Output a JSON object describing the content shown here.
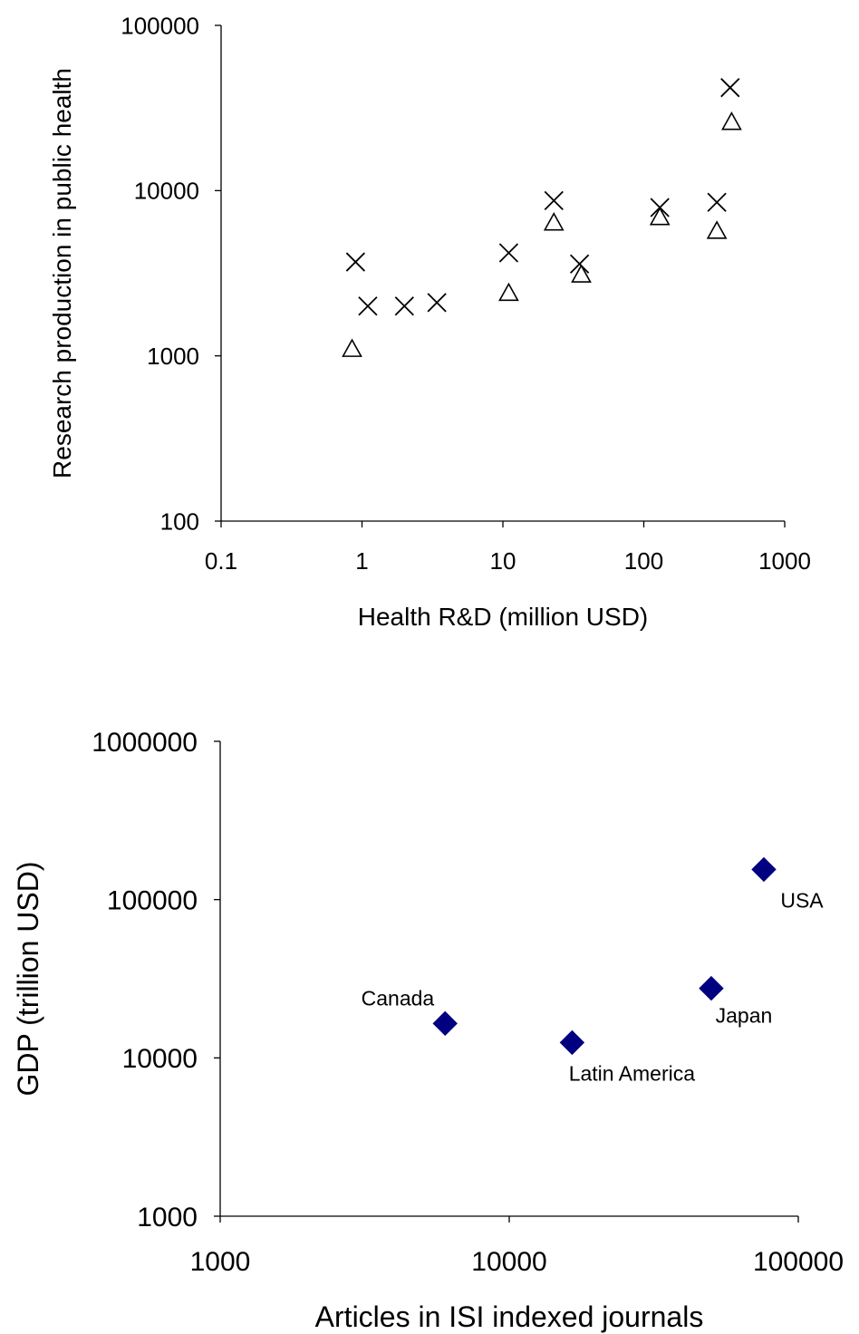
{
  "chart_data": [
    {
      "type": "scatter",
      "title": "",
      "xlabel": "Health R&D (million USD)",
      "ylabel": "Research production in public health",
      "x_scale": "log",
      "y_scale": "log",
      "xlim": [
        0.1,
        1000
      ],
      "ylim": [
        100,
        100000
      ],
      "x_ticks": [
        "0.1",
        "1",
        "10",
        "100",
        "1000"
      ],
      "y_ticks": [
        "100",
        "1000",
        "10000",
        "100000"
      ],
      "grid": false,
      "legend": "none",
      "series": [
        {
          "marker": "x",
          "color": "#000000",
          "points": [
            {
              "x": 0.9,
              "y": 3700
            },
            {
              "x": 1.1,
              "y": 2000
            },
            {
              "x": 2.0,
              "y": 2000
            },
            {
              "x": 3.4,
              "y": 2100
            },
            {
              "x": 11,
              "y": 4200
            },
            {
              "x": 23,
              "y": 8700
            },
            {
              "x": 35,
              "y": 3600
            },
            {
              "x": 130,
              "y": 7900
            },
            {
              "x": 330,
              "y": 8500
            },
            {
              "x": 410,
              "y": 42000
            }
          ]
        },
        {
          "marker": "triangle",
          "color": "#000000",
          "points": [
            {
              "x": 0.85,
              "y": 1100
            },
            {
              "x": 11,
              "y": 2400
            },
            {
              "x": 23,
              "y": 6400
            },
            {
              "x": 36,
              "y": 3100
            },
            {
              "x": 130,
              "y": 6900
            },
            {
              "x": 330,
              "y": 5700
            },
            {
              "x": 420,
              "y": 26000
            }
          ]
        }
      ]
    },
    {
      "type": "scatter",
      "title": "",
      "xlabel": "Articles in ISI indexed journals",
      "ylabel": "GDP (trillion USD)",
      "x_scale": "log",
      "y_scale": "log",
      "xlim": [
        1000,
        100000
      ],
      "ylim": [
        1000,
        1000000
      ],
      "x_ticks": [
        "1000",
        "10000",
        "100000"
      ],
      "y_ticks": [
        "1000",
        "10000",
        "100000",
        "1000000"
      ],
      "grid": false,
      "legend": "none",
      "series": [
        {
          "marker": "diamond",
          "color": "#000080",
          "points": [
            {
              "x": 6000,
              "y": 16500,
              "label": "Canada"
            },
            {
              "x": 16500,
              "y": 12500,
              "label": "Latin America"
            },
            {
              "x": 50000,
              "y": 27500,
              "label": "Japan"
            },
            {
              "x": 76000,
              "y": 155000,
              "label": "USA"
            }
          ]
        }
      ]
    }
  ]
}
